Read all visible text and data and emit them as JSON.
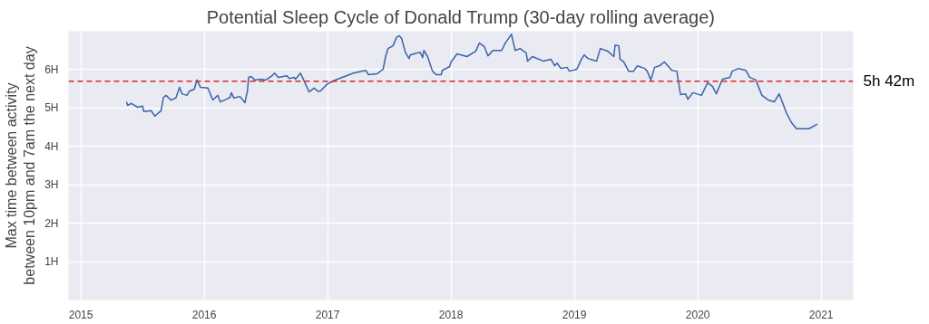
{
  "chart_data": {
    "type": "line",
    "title": "Potential Sleep Cycle of Donald Trump (30-day rolling average)",
    "ylabel": "Max time between activity\nbetween 10pm and 7am the next day",
    "xlim": [
      2014.9,
      2021.26
    ],
    "xticks": [
      2015,
      2016,
      2017,
      2018,
      2019,
      2020,
      2021
    ],
    "ylim": [
      0,
      7
    ],
    "yticks": [
      {
        "value": 1,
        "label": "1H"
      },
      {
        "value": 2,
        "label": "2H"
      },
      {
        "value": 3,
        "label": "3H"
      },
      {
        "value": 4,
        "label": "4H"
      },
      {
        "value": 5,
        "label": "5H"
      },
      {
        "value": 6,
        "label": "6H"
      }
    ],
    "grid": true,
    "line_style": "solid",
    "ref_lines": [
      {
        "axis": "y",
        "value": 5.7,
        "label": "5h 42m",
        "color": "#d62728",
        "line_style": "dashed"
      }
    ],
    "series": [
      {
        "color": "#3a64a8",
        "x": [
          2015.37,
          2015.38,
          2015.41,
          2015.46,
          2015.5,
          2015.51,
          2015.57,
          2015.6,
          2015.65,
          2015.67,
          2015.69,
          2015.73,
          2015.77,
          2015.8,
          2015.82,
          2015.86,
          2015.88,
          2015.92,
          2015.94,
          2015.97,
          2016.03,
          2016.07,
          2016.11,
          2016.13,
          2016.18,
          2016.21,
          2016.22,
          2016.24,
          2016.29,
          2016.33,
          2016.35,
          2016.36,
          2016.38,
          2016.41,
          2016.46,
          2016.5,
          2016.55,
          2016.57,
          2016.6,
          2016.67,
          2016.69,
          2016.73,
          2016.74,
          2016.78,
          2016.8,
          2016.85,
          2016.89,
          2016.92,
          2016.94,
          2017.0,
          2017.03,
          2017.08,
          2017.21,
          2017.31,
          2017.33,
          2017.4,
          2017.45,
          2017.47,
          2017.49,
          2017.53,
          2017.56,
          2017.58,
          2017.6,
          2017.63,
          2017.66,
          2017.67,
          2017.72,
          2017.75,
          2017.77,
          2017.78,
          2017.81,
          2017.85,
          2017.88,
          2017.92,
          2017.93,
          2017.99,
          2018.0,
          2018.05,
          2018.13,
          2018.2,
          2018.23,
          2018.27,
          2018.3,
          2018.34,
          2018.41,
          2018.44,
          2018.49,
          2018.52,
          2018.56,
          2018.61,
          2018.62,
          2018.66,
          2018.75,
          2018.81,
          2018.84,
          2018.86,
          2018.89,
          2018.94,
          2018.96,
          2019.02,
          2019.06,
          2019.08,
          2019.11,
          2019.16,
          2019.18,
          2019.21,
          2019.27,
          2019.32,
          2019.33,
          2019.36,
          2019.37,
          2019.4,
          2019.44,
          2019.48,
          2019.51,
          2019.57,
          2019.59,
          2019.62,
          2019.65,
          2019.69,
          2019.73,
          2019.79,
          2019.83,
          2019.86,
          2019.9,
          2019.92,
          2019.96,
          2020.03,
          2020.08,
          2020.12,
          2020.15,
          2020.2,
          2020.26,
          2020.28,
          2020.33,
          2020.39,
          2020.42,
          2020.47,
          2020.52,
          2020.57,
          2020.62,
          2020.66,
          2020.72,
          2020.76,
          2020.8,
          2020.9,
          2020.97
        ],
        "values": [
          5.16,
          5.07,
          5.12,
          5.02,
          5.05,
          4.91,
          4.93,
          4.79,
          4.93,
          5.28,
          5.33,
          5.21,
          5.26,
          5.54,
          5.37,
          5.33,
          5.44,
          5.49,
          5.73,
          5.54,
          5.52,
          5.21,
          5.33,
          5.16,
          5.23,
          5.28,
          5.4,
          5.26,
          5.3,
          5.14,
          5.44,
          5.8,
          5.82,
          5.73,
          5.75,
          5.73,
          5.84,
          5.91,
          5.8,
          5.84,
          5.77,
          5.8,
          5.75,
          5.91,
          5.77,
          5.42,
          5.52,
          5.44,
          5.44,
          5.63,
          5.68,
          5.75,
          5.91,
          5.98,
          5.87,
          5.89,
          6.01,
          6.34,
          6.55,
          6.62,
          6.85,
          6.88,
          6.81,
          6.45,
          6.29,
          6.38,
          6.43,
          6.45,
          6.31,
          6.5,
          6.34,
          5.96,
          5.87,
          5.87,
          5.98,
          6.08,
          6.2,
          6.41,
          6.34,
          6.48,
          6.69,
          6.6,
          6.36,
          6.5,
          6.5,
          6.69,
          6.92,
          6.5,
          6.55,
          6.43,
          6.22,
          6.34,
          6.22,
          6.27,
          6.1,
          6.17,
          6.03,
          6.06,
          5.96,
          6.01,
          6.29,
          6.38,
          6.29,
          6.24,
          6.22,
          6.55,
          6.48,
          6.34,
          6.64,
          6.62,
          6.27,
          6.2,
          5.96,
          5.96,
          6.1,
          6.03,
          5.96,
          5.73,
          6.06,
          6.1,
          6.2,
          5.98,
          5.96,
          5.35,
          5.37,
          5.23,
          5.4,
          5.33,
          5.66,
          5.56,
          5.37,
          5.75,
          5.8,
          5.96,
          6.03,
          5.98,
          5.8,
          5.73,
          5.33,
          5.21,
          5.16,
          5.37,
          4.86,
          4.62,
          4.46,
          4.46,
          4.58
        ]
      }
    ]
  }
}
